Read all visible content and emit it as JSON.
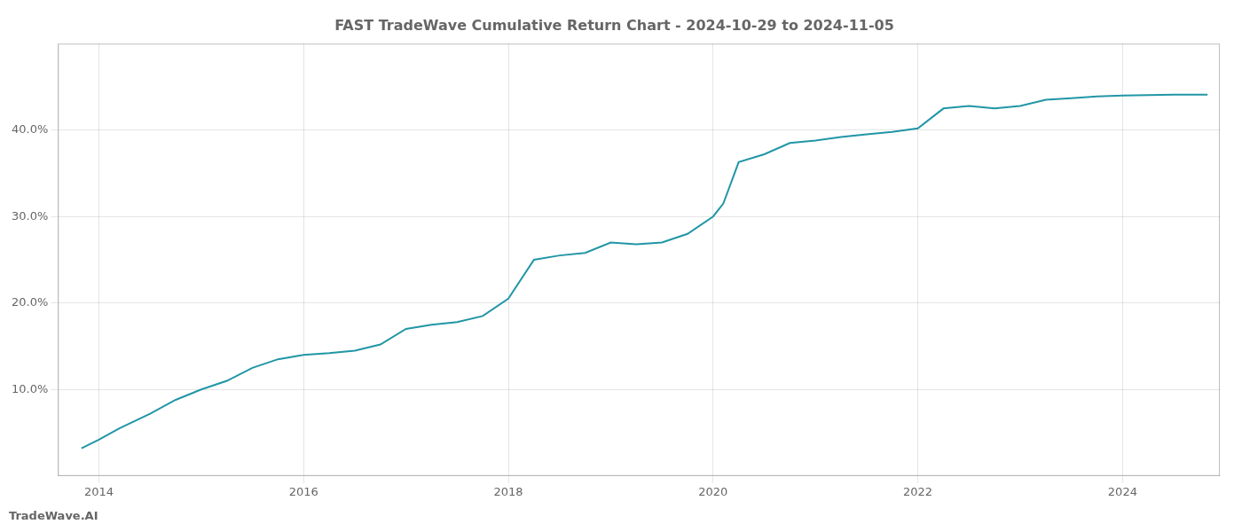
{
  "chart_data": {
    "type": "line",
    "title": "FAST TradeWave Cumulative Return Chart - 2024-10-29 to 2024-11-05",
    "annotations": [
      "TradeWave.AI"
    ],
    "color": "#2196a6",
    "x": [
      2013.83,
      2014.0,
      2014.2,
      2014.5,
      2014.75,
      2015.0,
      2015.25,
      2015.5,
      2015.75,
      2016.0,
      2016.25,
      2016.5,
      2016.75,
      2017.0,
      2017.25,
      2017.5,
      2017.75,
      2018.0,
      2018.25,
      2018.5,
      2018.75,
      2019.0,
      2019.25,
      2019.5,
      2019.75,
      2020.0,
      2020.1,
      2020.25,
      2020.5,
      2020.75,
      2021.0,
      2021.25,
      2021.5,
      2021.75,
      2022.0,
      2022.25,
      2022.5,
      2022.75,
      2023.0,
      2023.25,
      2023.5,
      2023.75,
      2024.0,
      2024.5,
      2024.83
    ],
    "values": [
      3.2,
      4.2,
      5.5,
      7.2,
      8.8,
      10.0,
      11.0,
      12.5,
      13.5,
      14.0,
      14.2,
      14.5,
      15.2,
      17.0,
      17.5,
      17.8,
      18.5,
      20.5,
      25.0,
      25.5,
      25.8,
      27.0,
      26.8,
      27.0,
      28.0,
      30.0,
      31.5,
      36.3,
      37.2,
      38.5,
      38.8,
      39.2,
      39.5,
      39.8,
      40.2,
      42.5,
      42.8,
      42.5,
      42.8,
      43.5,
      43.7,
      43.9,
      44.0,
      44.1,
      44.1
    ],
    "xlim": [
      2013.6,
      2024.95
    ],
    "xticks": [
      2014,
      2016,
      2018,
      2020,
      2022,
      2024
    ],
    "ylim": [
      0,
      50
    ],
    "yticks": [
      {
        "value": 10.0,
        "label": "10.0%"
      },
      {
        "value": 20.0,
        "label": "20.0%"
      },
      {
        "value": 30.0,
        "label": "30.0%"
      },
      {
        "value": 40.0,
        "label": "40.0%"
      }
    ],
    "grid": true
  }
}
